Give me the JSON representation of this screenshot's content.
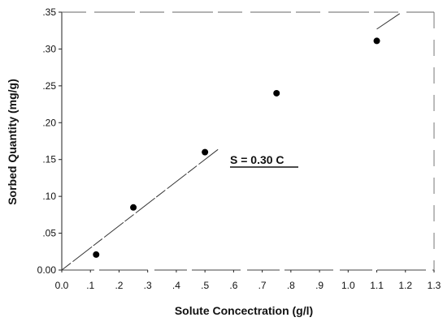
{
  "chart_data": {
    "type": "scatter",
    "title": "",
    "xlabel": "Solute Concectration (g/l)",
    "ylabel": "Sorbed Quantity (mg/g)",
    "xlim": [
      0.0,
      1.3
    ],
    "ylim": [
      0.0,
      0.35
    ],
    "x_ticks": [
      "0.0",
      ".1",
      ".2",
      ".3",
      ".4",
      ".5",
      ".6",
      ".7",
      ".8",
      ".9",
      "1.0",
      "1.1",
      "1.2",
      "1.3"
    ],
    "y_ticks": [
      "0.00",
      ".05",
      ".10",
      ".15",
      ".20",
      ".25",
      ".30",
      ".35"
    ],
    "grid": false,
    "series": [
      {
        "points": [
          {
            "x": 0.12,
            "y": 0.021
          },
          {
            "x": 0.25,
            "y": 0.085
          },
          {
            "x": 0.5,
            "y": 0.16
          },
          {
            "x": 0.75,
            "y": 0.24
          },
          {
            "x": 1.1,
            "y": 0.311
          }
        ]
      }
    ],
    "fit_line": {
      "slope": 0.3,
      "x_range": [
        0.0,
        0.55
      ]
    },
    "extra_line": {
      "x_range": [
        1.1,
        1.18
      ],
      "y_range": [
        0.327,
        0.348
      ]
    },
    "annotation": "S = 0.30 C",
    "marker_color": "#000000",
    "line_color": "#333333"
  }
}
